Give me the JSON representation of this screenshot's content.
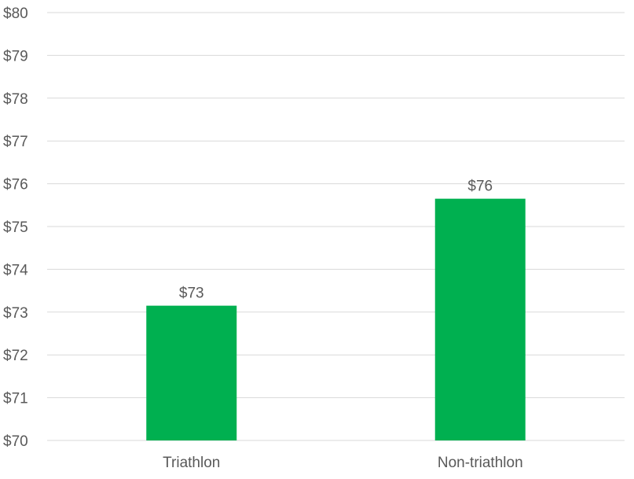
{
  "chart_data": {
    "type": "bar",
    "title": "",
    "xlabel": "",
    "ylabel": "",
    "categories": [
      "Triathlon",
      "Non-triathlon"
    ],
    "values": [
      73.15,
      75.65
    ],
    "data_labels": [
      "$73",
      "$76"
    ],
    "ylim": [
      70,
      80
    ],
    "yticks": [
      70,
      71,
      72,
      73,
      74,
      75,
      76,
      77,
      78,
      79,
      80
    ],
    "ytick_labels": [
      "$70",
      "$71",
      "$72",
      "$73",
      "$74",
      "$75",
      "$76",
      "$77",
      "$78",
      "$79",
      "$80"
    ],
    "grid": true,
    "legend": "none",
    "bar_color": "#00b050"
  }
}
